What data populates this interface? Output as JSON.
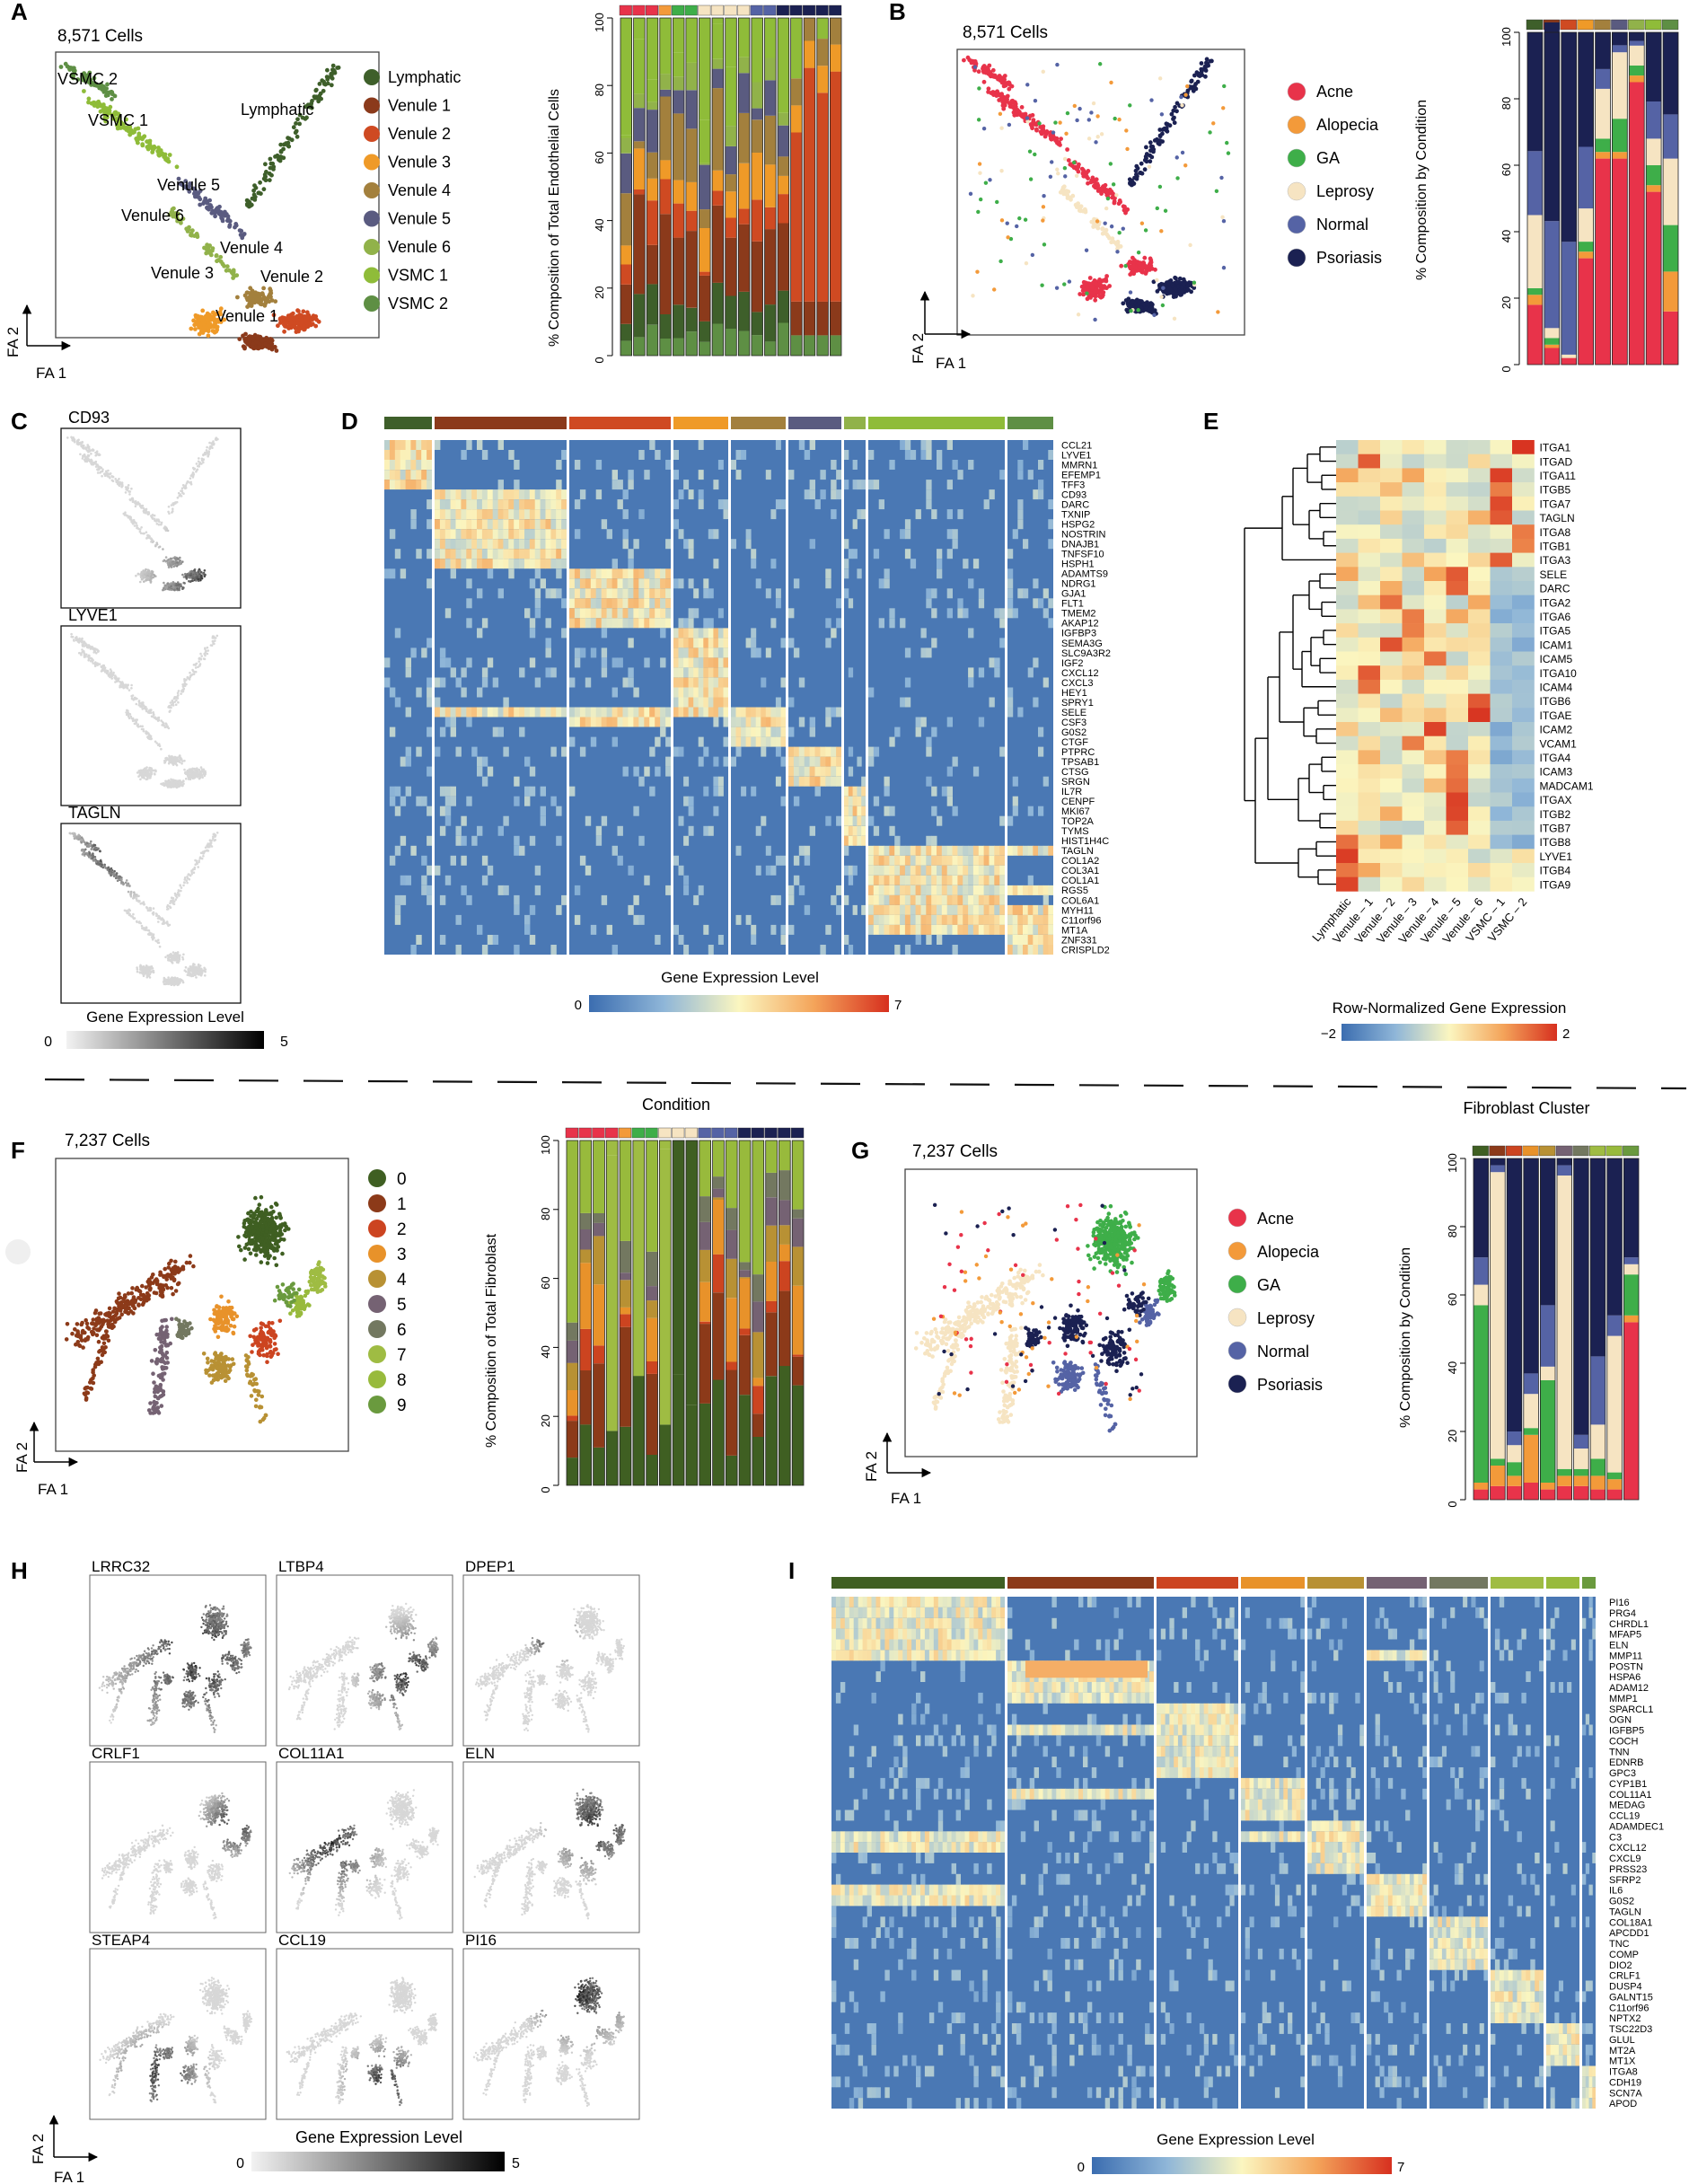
{
  "colors": {
    "heat_low": "#4a78b4",
    "heat_mid": "#fbf7c0",
    "heat_high": "#d7301f",
    "cond": {
      "Acne": "#e8334a",
      "Alopecia": "#f39a3a",
      "GA": "#3eae49",
      "Leprosy": "#f6e4c2",
      "Normal": "#5563a5",
      "Psoriasis": "#1b2152"
    },
    "endo": {
      "Lymphatic": "#3e5f2a",
      "Venule 1": "#8b3a1b",
      "Venule 2": "#cf4a22",
      "Venule 3": "#ef9a28",
      "Venule 4": "#a3803d",
      "Venule 5": "#5a5b80",
      "Venule 6": "#91b24a",
      "VSMC 1": "#8fbc39",
      "VSMC 2": "#5e8f44"
    },
    "fib": [
      "#3f5f22",
      "#8c3a19",
      "#cc4420",
      "#e8922a",
      "#b89134",
      "#756273",
      "#737860",
      "#9fbc43",
      "#98ba3c",
      "#6a9a3e"
    ]
  },
  "labels": {
    "A": "A",
    "B": "B",
    "C": "C",
    "D": "D",
    "E": "E",
    "F": "F",
    "G": "G",
    "H": "H",
    "I": "I"
  },
  "panelA": {
    "cells": "8,571 Cells",
    "axis_x": "FA 1",
    "axis_y": "FA 2",
    "cluster_labels": [
      "VSMC 2",
      "VSMC 1",
      "Lymphatic",
      "Venule 5",
      "Venule 6",
      "Venule 4",
      "Venule 3",
      "Venule 2",
      "Venule 1"
    ],
    "legend": [
      "Lymphatic",
      "Venule 1",
      "Venule 2",
      "Venule 3",
      "Venule 4",
      "Venule 5",
      "Venule 6",
      "VSMC 1",
      "VSMC 2"
    ],
    "bar_ylabel": "% Composition of Total Endothelial Cells",
    "bar_ticks": [
      "0",
      "20",
      "40",
      "60",
      "80",
      "100"
    ]
  },
  "panelB": {
    "cells": "8,571 Cells",
    "axis_x": "FA 1",
    "axis_y": "FA 2",
    "legend": [
      "Acne",
      "Alopecia",
      "GA",
      "Leprosy",
      "Normal",
      "Psoriasis"
    ],
    "bar_ylabel": "% Composition by Condition",
    "bar_ticks": [
      "0",
      "20",
      "40",
      "60",
      "80",
      "100"
    ]
  },
  "panelC": {
    "genes": [
      "CD93",
      "LYVE1",
      "TAGLN"
    ],
    "scale_title": "Gene Expression Level",
    "scale_min": "0",
    "scale_max": "5"
  },
  "panelD": {
    "genes": [
      "CCL21",
      "LYVE1",
      "MMRN1",
      "EFEMP1",
      "TFF3",
      "CD93",
      "DARC",
      "TXNIP",
      "HSPG2",
      "NOSTRIN",
      "DNAJB1",
      "TNFSF10",
      "HSPH1",
      "ADAMTS9",
      "NDRG1",
      "GJA1",
      "FLT1",
      "TMEM2",
      "AKAP12",
      "IGFBP3",
      "SEMA3G",
      "SLC9A3R2",
      "IGF2",
      "CXCL12",
      "CXCL3",
      "HEY1",
      "SPRY1",
      "SELE",
      "CSF3",
      "G0S2",
      "CTGF",
      "PTPRC",
      "TPSAB1",
      "CTSG",
      "SRGN",
      "IL7R",
      "CENPF",
      "MKI67",
      "TOP2A",
      "TYMS",
      "HIST1H4C",
      "TAGLN",
      "COL1A2",
      "COL3A1",
      "COL1A1",
      "RGS5",
      "COL6A1",
      "MYH11",
      "C11orf96",
      "MT1A",
      "ZNF331",
      "CRISPLD2"
    ],
    "scale_title": "Gene Expression Level",
    "scale_min": "0",
    "scale_max": "7"
  },
  "panelE": {
    "genes": [
      "ITGA1",
      "ITGAD",
      "ITGA11",
      "ITGB5",
      "ITGA7",
      "TAGLN",
      "ITGA8",
      "ITGB1",
      "ITGA3",
      "SELE",
      "DARC",
      "ITGA2",
      "ITGA6",
      "ITGA5",
      "ICAM1",
      "ICAM5",
      "ITGA10",
      "ICAM4",
      "ITGB6",
      "ITGAE",
      "ICAM2",
      "VCAM1",
      "ITGA4",
      "ICAM3",
      "MADCAM1",
      "ITGAX",
      "ITGB2",
      "ITGB7",
      "ITGB8",
      "LYVE1",
      "ITGB4",
      "ITGA9"
    ],
    "columns": [
      "Lymphatic",
      "Venule – 1",
      "Venule – 2",
      "Venule – 3",
      "Venule – 4",
      "Venule – 5",
      "Venule – 6",
      "VSMC – 1",
      "VSMC – 2"
    ],
    "scale_title": "Row-Normalized Gene Expression",
    "scale_min": "−2",
    "scale_max": "2"
  },
  "panelF": {
    "cells": "7,237 Cells",
    "axis_x": "FA 1",
    "axis_y": "FA 2",
    "legend": [
      "0",
      "1",
      "2",
      "3",
      "4",
      "5",
      "6",
      "7",
      "8",
      "9"
    ],
    "bar_title": "Condition",
    "bar_ylabel": "% Composition of Total Fibroblast",
    "bar_ticks": [
      "0",
      "20",
      "40",
      "60",
      "80",
      "100"
    ]
  },
  "panelG": {
    "cells": "7,237 Cells",
    "axis_x": "FA 1",
    "axis_y": "FA 2",
    "legend": [
      "Acne",
      "Alopecia",
      "GA",
      "Leprosy",
      "Normal",
      "Psoriasis"
    ],
    "bar_title": "Fibroblast Cluster",
    "bar_ylabel": "% Composition by Condition",
    "bar_ticks": [
      "0",
      "20",
      "40",
      "60",
      "80",
      "100"
    ]
  },
  "panelH": {
    "genes": [
      "LRRC32",
      "LTBP4",
      "DPEP1",
      "CRLF1",
      "COL11A1",
      "ELN",
      "STEAP4",
      "CCL19",
      "PI16"
    ],
    "axis_x": "FA 1",
    "axis_y": "FA 2",
    "scale_title": "Gene Expression Level",
    "scale_min": "0",
    "scale_max": "5"
  },
  "panelI": {
    "genes": [
      "PI16",
      "PRG4",
      "CHRDL1",
      "MFAP5",
      "ELN",
      "MMP11",
      "POSTN",
      "HSPA6",
      "ADAM12",
      "MMP1",
      "SPARCL1",
      "OGN",
      "IGFBP5",
      "COCH",
      "TNN",
      "EDNRB",
      "GPC3",
      "CYP1B1",
      "COL11A1",
      "MEDAG",
      "CCL19",
      "ADAMDEC1",
      "C3",
      "CXCL12",
      "CXCL9",
      "PRSS23",
      "SFRP2",
      "IL6",
      "G0S2",
      "TAGLN",
      "COL18A1",
      "APCDD1",
      "TNC",
      "COMP",
      "DIO2",
      "CRLF1",
      "DUSP4",
      "GALNT15",
      "C11orf96",
      "NPTX2",
      "TSC22D3",
      "GLUL",
      "MT2A",
      "MT1X",
      "ITGA8",
      "CDH19",
      "SCN7A",
      "APOD"
    ],
    "scale_title": "Gene Expression Level",
    "scale_min": "0",
    "scale_max": "7"
  }
}
